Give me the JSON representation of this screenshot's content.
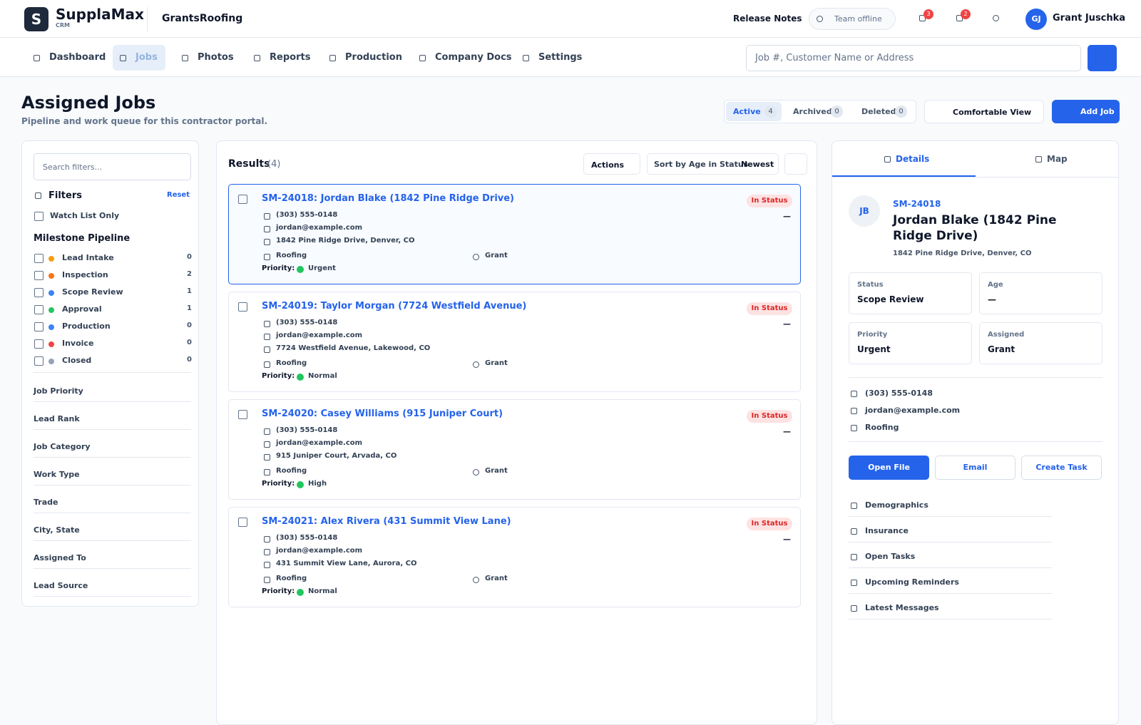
{
  "header": {
    "logo_letter": "S",
    "brand": "SupplaMax",
    "brand_sub": "CRM",
    "company": "GrantsRoofing",
    "release_notes": "Release Notes",
    "team_status": "Team offline",
    "alerts_count": "3",
    "messages_count": "2",
    "user_initials": "GJ",
    "user_name": "Grant Juschka"
  },
  "nav": {
    "items": [
      "Dashboard",
      "Jobs",
      "Photos",
      "Reports",
      "Production",
      "Company Docs",
      "Settings"
    ],
    "search_placeholder": "Job #, Customer Name or Address"
  },
  "page": {
    "title": "Assigned Jobs",
    "subtitle": "Pipeline and work queue for this contractor portal.",
    "tabs": [
      {
        "label": "Active",
        "count": "4"
      },
      {
        "label": "Archived",
        "count": "0"
      },
      {
        "label": "Deleted",
        "count": "0"
      }
    ],
    "view": "Comfortable View",
    "add_button": "Add Job"
  },
  "filters": {
    "search_placeholder": "Search filters...",
    "title": "Filters",
    "reset": "Reset",
    "watch_list": "Watch List Only",
    "milestone_title": "Milestone Pipeline",
    "milestones": [
      {
        "label": "Lead Intake",
        "count": "0",
        "color": "#f59e0b"
      },
      {
        "label": "Inspection",
        "count": "2",
        "color": "#f97316"
      },
      {
        "label": "Scope Review",
        "count": "1",
        "color": "#3b82f6"
      },
      {
        "label": "Approval",
        "count": "1",
        "color": "#22c55e"
      },
      {
        "label": "Production",
        "count": "0",
        "color": "#3b82f6"
      },
      {
        "label": "Invoice",
        "count": "0",
        "color": "#ef4444"
      },
      {
        "label": "Closed",
        "count": "0",
        "color": "#94a3b8"
      }
    ],
    "sections": [
      "Job Priority",
      "Lead Rank",
      "Job Category",
      "Work Type",
      "Trade",
      "City, State",
      "Assigned To",
      "Lead Source"
    ]
  },
  "results": {
    "title": "Results",
    "count": "(4)",
    "actions": "Actions",
    "sort_label": "Sort by Age in Status",
    "sort_order": "Newest",
    "priority_label": "Priority:",
    "jobs": [
      {
        "title": "SM-24018: Jordan Blake (1842 Pine Ridge Drive)",
        "phone": "(303) 555-0148",
        "email": "jordan@example.com",
        "address": "1842 Pine Ridge Drive, Denver, CO",
        "category": "Roofing",
        "assignee": "Grant",
        "priority": "Urgent",
        "status": "In Status",
        "age": "—"
      },
      {
        "title": "SM-24019: Taylor Morgan (7724 Westfield Avenue)",
        "phone": "(303) 555-0148",
        "email": "jordan@example.com",
        "address": "7724 Westfield Avenue, Lakewood, CO",
        "category": "Roofing",
        "assignee": "Grant",
        "priority": "Normal",
        "status": "In Status",
        "age": "—"
      },
      {
        "title": "SM-24020: Casey Williams (915 Juniper Court)",
        "phone": "(303) 555-0148",
        "email": "jordan@example.com",
        "address": "915 Juniper Court, Arvada, CO",
        "category": "Roofing",
        "assignee": "Grant",
        "priority": "High",
        "status": "In Status",
        "age": "—"
      },
      {
        "title": "SM-24021: Alex Rivera (431 Summit View Lane)",
        "phone": "(303) 555-0148",
        "email": "jordan@example.com",
        "address": "431 Summit View Lane, Aurora, CO",
        "category": "Roofing",
        "assignee": "Grant",
        "priority": "Normal",
        "status": "In Status",
        "age": "—"
      }
    ]
  },
  "details": {
    "tabs": [
      "Details",
      "Map"
    ],
    "initials": "JB",
    "job_id": "SM-24018",
    "name": "Jordan Blake (1842 Pine Ridge Drive)",
    "address": "1842 Pine Ridge Drive, Denver, CO",
    "fields": [
      {
        "label": "Status",
        "value": "Scope Review"
      },
      {
        "label": "Age",
        "value": "—"
      },
      {
        "label": "Priority",
        "value": "Urgent"
      },
      {
        "label": "Assigned",
        "value": "Grant"
      }
    ],
    "contacts": [
      "(303) 555-0148",
      "jordan@example.com",
      "Roofing"
    ],
    "buttons": [
      "Open File",
      "Email",
      "Create Task"
    ],
    "links": [
      "Demographics",
      "Insurance",
      "Open Tasks",
      "Upcoming Reminders",
      "Latest Messages"
    ]
  }
}
